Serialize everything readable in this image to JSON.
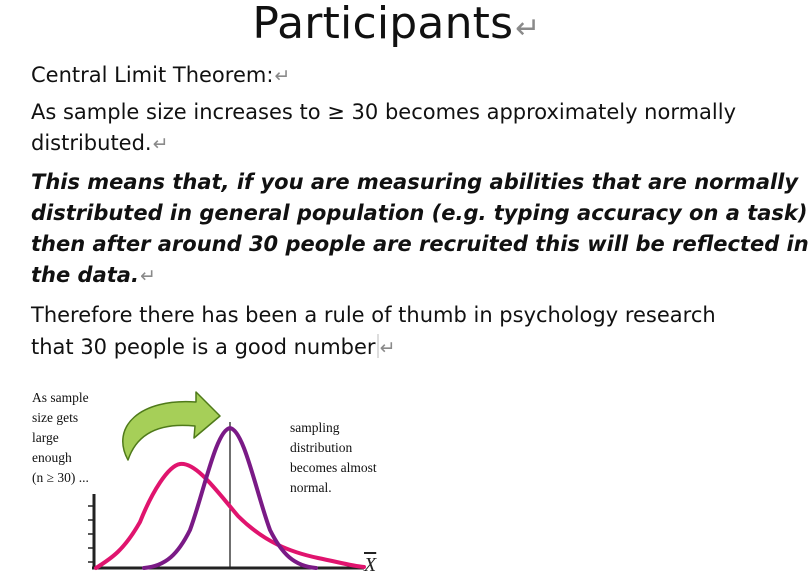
{
  "title": "Participants",
  "para_mark": "↵",
  "paragraphs": {
    "heading": "Central Limit Theorem:",
    "line1a": "As sample size increases to ≥ 30 becomes approximately normally",
    "line1b": "distributed.",
    "bold_a": "This means that, if you are measuring abilities that are normally",
    "bold_b": "distributed in general population (e.g. typing accuracy on a task)",
    "bold_c": "then after around 30 people are recruited this will be reflected in",
    "bold_d": "the data.",
    "line3a": "Therefore there has been a rule of thumb in psychology research",
    "line3b": "that 30 people is a good number"
  },
  "figure": {
    "left_caption": [
      "As sample",
      "size gets",
      "large",
      "enough",
      "(n ≥ 30) ..."
    ],
    "right_caption": [
      "sampling",
      "distribution",
      "becomes almost",
      "normal."
    ],
    "axis_symbol": "X",
    "colors": {
      "skewed_curve": "#e0146e",
      "normal_curve": "#7a1a86",
      "arrow_fill": "#a6cf58",
      "arrow_stroke": "#4f7a1a"
    }
  }
}
